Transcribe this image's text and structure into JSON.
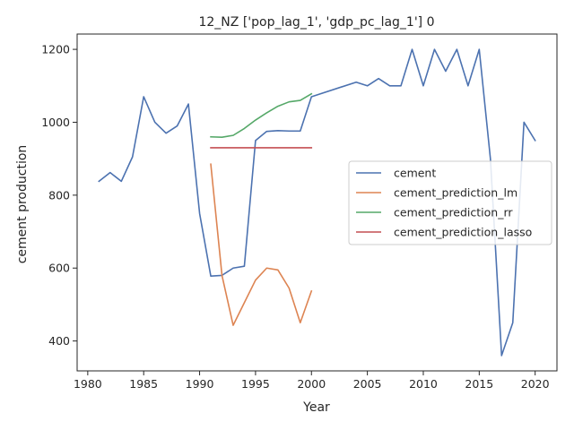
{
  "chart_data": {
    "type": "line",
    "title": "12_NZ ['pop_lag_1', 'gdp_pc_lag_1'] 0",
    "xlabel": "Year",
    "ylabel": "cement production",
    "xlim": [
      1979.05,
      2021.95
    ],
    "ylim": [
      318,
      1242
    ],
    "xticks": [
      1980,
      1985,
      1990,
      1995,
      2000,
      2005,
      2010,
      2015,
      2020
    ],
    "yticks": [
      400,
      600,
      800,
      1000,
      1200
    ],
    "grid": false,
    "legend_position": "center-right",
    "series": [
      {
        "name": "cement",
        "color": "#4c72b0",
        "x": [
          1981,
          1982,
          1983,
          1984,
          1985,
          1986,
          1987,
          1988,
          1989,
          1990,
          1991,
          1992,
          1993,
          1994,
          1995,
          1996,
          1997,
          1998,
          1999,
          2000,
          2004,
          2005,
          2006,
          2007,
          2008,
          2009,
          2010,
          2011,
          2012,
          2013,
          2014,
          2015,
          2016,
          2017,
          2018,
          2019,
          2020
        ],
        "y": [
          838,
          862,
          838,
          905,
          1070,
          1000,
          970,
          990,
          1050,
          750,
          578,
          580,
          600,
          605,
          950,
          975,
          977,
          976,
          976,
          1070,
          1110,
          1100,
          1120,
          1100,
          1100,
          1200,
          1100,
          1200,
          1140,
          1200,
          1100,
          1200,
          900,
          360,
          450,
          1000,
          950
        ]
      },
      {
        "name": "cement_prediction_lm",
        "color": "#dd8452",
        "x": [
          1991,
          1992,
          1993,
          1994,
          1995,
          1996,
          1997,
          1998,
          1999,
          2000
        ],
        "y": [
          885,
          580,
          443,
          505,
          567,
          600,
          595,
          545,
          450,
          537
        ]
      },
      {
        "name": "cement_prediction_rr",
        "color": "#55a868",
        "x": [
          1991,
          1992,
          1993,
          1994,
          1995,
          1996,
          1997,
          1998,
          1999,
          2000
        ],
        "y": [
          960,
          959,
          964,
          983,
          1006,
          1026,
          1044,
          1056,
          1060,
          1078
        ]
      },
      {
        "name": "cement_prediction_lasso",
        "color": "#c44e52",
        "x": [
          1991,
          2000
        ],
        "y": [
          930,
          930
        ]
      }
    ]
  }
}
